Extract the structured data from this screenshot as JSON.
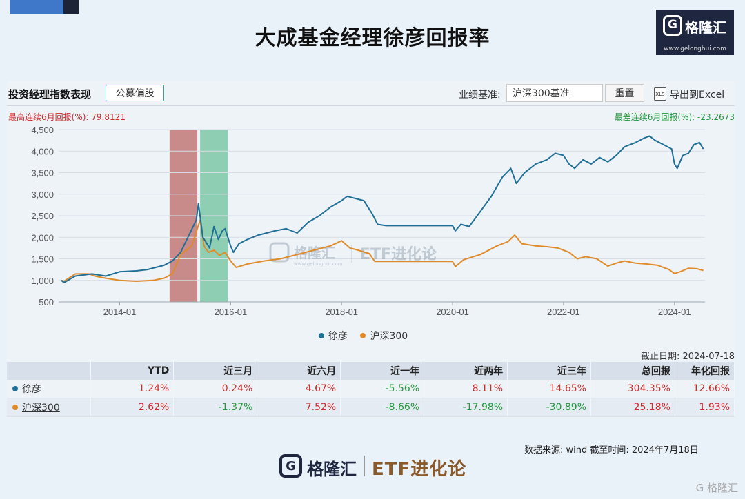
{
  "title": "大成基金经理徐彦回报率",
  "logo": {
    "g": "G",
    "name": "格隆汇",
    "url": "www.gelonghui.com"
  },
  "panel": {
    "title": "投资经理指数表现",
    "tag": "公募偏股",
    "benchmark_label": "业绩基准:",
    "benchmark_value": "沪深300基准",
    "reset_label": "重置",
    "export_icon": "XLS",
    "export_label": "导出到Excel",
    "max_return": "最高连续6月回报(%):  79.8121",
    "min_return": "最差连续6月回报(%):  -23.2673"
  },
  "watermark": {
    "g": "G",
    "name": "格隆汇",
    "sub": "www.gelonghui.com",
    "etf": "ETF进化论"
  },
  "chart_data": {
    "type": "line",
    "ylim": [
      500,
      4500
    ],
    "yticks": [
      "4,500",
      "4,000",
      "3,500",
      "3,000",
      "2,500",
      "2,000",
      "1,500",
      "1,000",
      "500"
    ],
    "xticks": [
      "2014-01",
      "2016-01",
      "2018-01",
      "2020-01",
      "2022-01",
      "2024-01"
    ],
    "x_range": [
      2012.9,
      2024.55
    ],
    "bands": [
      {
        "from": 2014.9,
        "to": 2015.4,
        "color": "#c98a8a"
      },
      {
        "from": 2015.45,
        "to": 2015.95,
        "color": "#8ecfb3"
      }
    ],
    "series": [
      {
        "name": "徐彦",
        "color": "#1f6f96",
        "points": [
          [
            2012.95,
            1000
          ],
          [
            2013.0,
            950
          ],
          [
            2013.2,
            1100
          ],
          [
            2013.5,
            1150
          ],
          [
            2013.75,
            1100
          ],
          [
            2014.0,
            1200
          ],
          [
            2014.3,
            1220
          ],
          [
            2014.5,
            1250
          ],
          [
            2014.8,
            1350
          ],
          [
            2014.95,
            1450
          ],
          [
            2015.1,
            1650
          ],
          [
            2015.25,
            2050
          ],
          [
            2015.38,
            2400
          ],
          [
            2015.42,
            2780
          ],
          [
            2015.5,
            2000
          ],
          [
            2015.55,
            1900
          ],
          [
            2015.62,
            1750
          ],
          [
            2015.7,
            2250
          ],
          [
            2015.78,
            1950
          ],
          [
            2015.85,
            2150
          ],
          [
            2015.9,
            2200
          ],
          [
            2016.0,
            1800
          ],
          [
            2016.05,
            1650
          ],
          [
            2016.15,
            1850
          ],
          [
            2016.3,
            1950
          ],
          [
            2016.5,
            2050
          ],
          [
            2016.8,
            2150
          ],
          [
            2017.0,
            2200
          ],
          [
            2017.2,
            2100
          ],
          [
            2017.4,
            2350
          ],
          [
            2017.6,
            2500
          ],
          [
            2017.8,
            2700
          ],
          [
            2018.0,
            2850
          ],
          [
            2018.1,
            2950
          ],
          [
            2018.25,
            2900
          ],
          [
            2018.4,
            2850
          ],
          [
            2018.55,
            2550
          ],
          [
            2018.65,
            2300
          ],
          [
            2018.8,
            2270
          ],
          [
            2019.0,
            2270
          ],
          [
            2019.5,
            2270
          ],
          [
            2020.0,
            2270
          ],
          [
            2020.05,
            2150
          ],
          [
            2020.15,
            2300
          ],
          [
            2020.3,
            2250
          ],
          [
            2020.5,
            2600
          ],
          [
            2020.7,
            2950
          ],
          [
            2020.9,
            3400
          ],
          [
            2021.05,
            3600
          ],
          [
            2021.15,
            3250
          ],
          [
            2021.3,
            3500
          ],
          [
            2021.5,
            3700
          ],
          [
            2021.7,
            3800
          ],
          [
            2021.85,
            3950
          ],
          [
            2022.0,
            3900
          ],
          [
            2022.1,
            3700
          ],
          [
            2022.2,
            3600
          ],
          [
            2022.35,
            3800
          ],
          [
            2022.5,
            3700
          ],
          [
            2022.65,
            3850
          ],
          [
            2022.8,
            3750
          ],
          [
            2022.95,
            3900
          ],
          [
            2023.1,
            4100
          ],
          [
            2023.3,
            4200
          ],
          [
            2023.45,
            4300
          ],
          [
            2023.55,
            4350
          ],
          [
            2023.65,
            4250
          ],
          [
            2023.8,
            4150
          ],
          [
            2023.95,
            4050
          ],
          [
            2024.0,
            3700
          ],
          [
            2024.05,
            3600
          ],
          [
            2024.15,
            3900
          ],
          [
            2024.25,
            3950
          ],
          [
            2024.35,
            4150
          ],
          [
            2024.45,
            4200
          ],
          [
            2024.52,
            4050
          ]
        ]
      },
      {
        "name": "沪深300",
        "color": "#e08b2a",
        "points": [
          [
            2012.95,
            1000
          ],
          [
            2013.0,
            980
          ],
          [
            2013.2,
            1150
          ],
          [
            2013.45,
            1150
          ],
          [
            2013.55,
            1100
          ],
          [
            2013.75,
            1050
          ],
          [
            2014.0,
            1000
          ],
          [
            2014.3,
            980
          ],
          [
            2014.6,
            1000
          ],
          [
            2014.8,
            1050
          ],
          [
            2014.95,
            1150
          ],
          [
            2015.1,
            1600
          ],
          [
            2015.3,
            1800
          ],
          [
            2015.45,
            2400
          ],
          [
            2015.52,
            1800
          ],
          [
            2015.6,
            1650
          ],
          [
            2015.7,
            1700
          ],
          [
            2015.8,
            1580
          ],
          [
            2015.9,
            1650
          ],
          [
            2016.0,
            1450
          ],
          [
            2016.1,
            1300
          ],
          [
            2016.3,
            1380
          ],
          [
            2016.6,
            1450
          ],
          [
            2016.9,
            1500
          ],
          [
            2017.2,
            1600
          ],
          [
            2017.5,
            1700
          ],
          [
            2017.8,
            1800
          ],
          [
            2018.0,
            1920
          ],
          [
            2018.15,
            1750
          ],
          [
            2018.3,
            1700
          ],
          [
            2018.5,
            1620
          ],
          [
            2018.6,
            1440
          ],
          [
            2018.8,
            1440
          ],
          [
            2019.2,
            1440
          ],
          [
            2019.6,
            1440
          ],
          [
            2020.0,
            1440
          ],
          [
            2020.05,
            1320
          ],
          [
            2020.2,
            1480
          ],
          [
            2020.5,
            1600
          ],
          [
            2020.8,
            1800
          ],
          [
            2021.0,
            1900
          ],
          [
            2021.12,
            2050
          ],
          [
            2021.25,
            1850
          ],
          [
            2021.5,
            1800
          ],
          [
            2021.7,
            1780
          ],
          [
            2021.9,
            1750
          ],
          [
            2022.1,
            1650
          ],
          [
            2022.25,
            1500
          ],
          [
            2022.4,
            1550
          ],
          [
            2022.6,
            1500
          ],
          [
            2022.8,
            1330
          ],
          [
            2022.95,
            1400
          ],
          [
            2023.1,
            1450
          ],
          [
            2023.3,
            1400
          ],
          [
            2023.5,
            1380
          ],
          [
            2023.7,
            1350
          ],
          [
            2023.9,
            1250
          ],
          [
            2024.0,
            1160
          ],
          [
            2024.1,
            1200
          ],
          [
            2024.25,
            1280
          ],
          [
            2024.4,
            1270
          ],
          [
            2024.52,
            1230
          ]
        ]
      }
    ]
  },
  "legend": [
    {
      "name": "徐彦",
      "color": "#1f6f96"
    },
    {
      "name": "沪深300",
      "color": "#e08b2a"
    }
  ],
  "as_of": "截止日期:  2024-07-18",
  "table": {
    "headers": [
      "",
      "YTD",
      "近三月",
      "近六月",
      "近一年",
      "近两年",
      "近三年",
      "总回报",
      "年化回报"
    ],
    "rows": [
      {
        "name": "徐彦",
        "color": "#1f6f96",
        "values": [
          "1.24%",
          "0.24%",
          "4.67%",
          "-5.56%",
          "8.11%",
          "14.65%",
          "304.35%",
          "12.66%"
        ]
      },
      {
        "name": "沪深300",
        "color": "#e08b2a",
        "values": [
          "2.62%",
          "-1.37%",
          "7.52%",
          "-8.66%",
          "-17.98%",
          "-30.89%",
          "25.18%",
          "1.93%"
        ]
      }
    ]
  },
  "source": "数据来源:  wind     截至时间:  2024年7月18日",
  "footer": {
    "g": "G",
    "name": "格隆汇",
    "etf": "ETF进化论"
  },
  "corner_watermark": "G 格隆汇"
}
